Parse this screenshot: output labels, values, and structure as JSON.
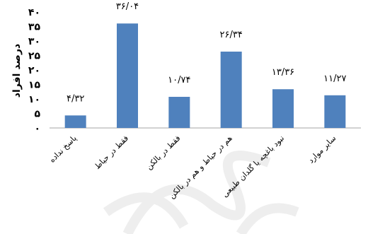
{
  "chart_data": {
    "type": "bar",
    "ylabel": "درصد افراد",
    "ylim": [
      0,
      40
    ],
    "yticks": [
      0,
      5,
      10,
      15,
      20,
      25,
      30,
      35,
      40
    ],
    "ytick_labels": [
      "۰",
      "۵",
      "۱۰",
      "۱۵",
      "۲۰",
      "۲۵",
      "۳۰",
      "۳۵",
      "۴۰"
    ],
    "categories": [
      "پاسخ نداده",
      "فقط در حیاط",
      "فقط در بالکن",
      "هم در حیاط و هم در بالکن",
      "نبود باغچه یا گلدان طبیعی",
      "سایر موارد"
    ],
    "values": [
      4.32,
      36.04,
      10.74,
      26.34,
      13.36,
      11.27
    ],
    "data_labels": [
      "۴/۳۲",
      "۳۶/۰۴",
      "۱۰/۷۴",
      "۲۶/۳۴",
      "۱۳/۳۶",
      "۱۱/۲۷"
    ],
    "bar_color": "#4f81bd",
    "axis_color": "#a6a6a6",
    "grid": false,
    "legend": "none"
  }
}
